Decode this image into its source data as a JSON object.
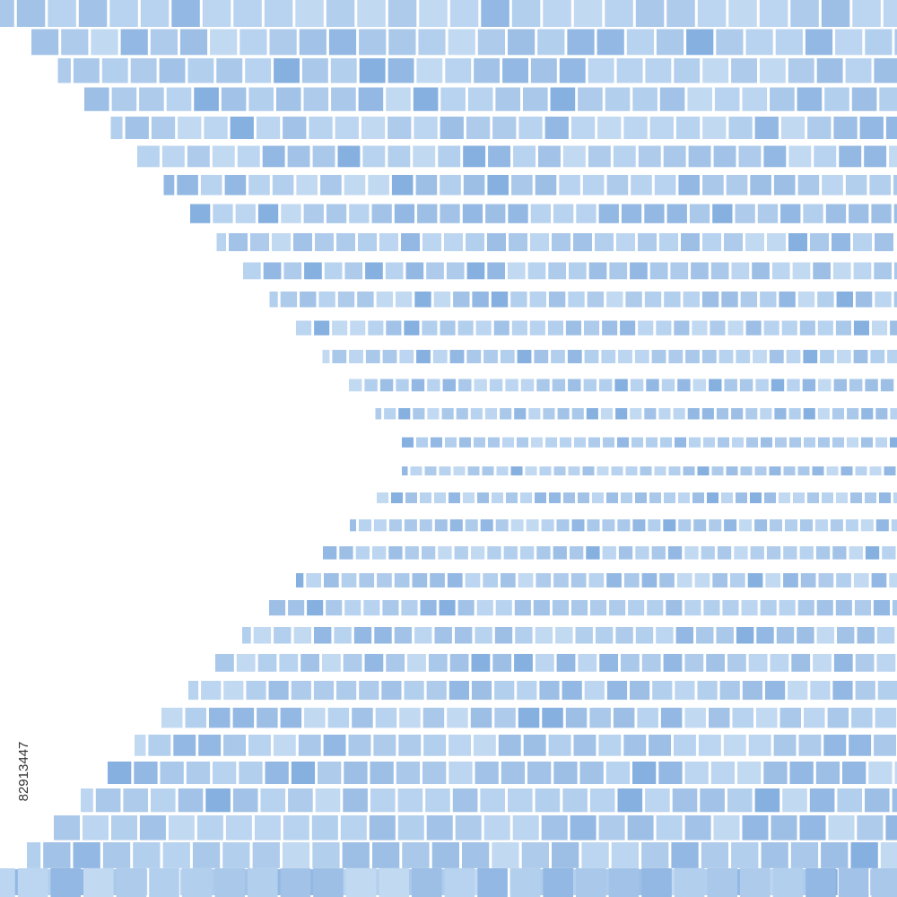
{
  "watermark": {
    "id": "82913447"
  }
}
